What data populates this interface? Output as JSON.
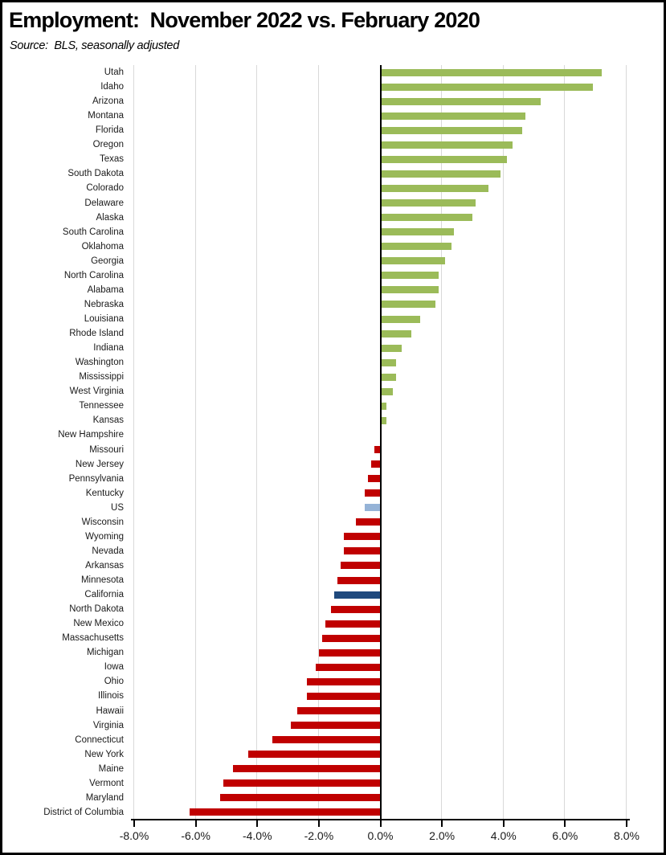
{
  "header": {
    "title": "Employment:  November 2022 vs. February 2020",
    "source": "Source:  BLS, seasonally adjusted"
  },
  "chart_data": {
    "type": "bar",
    "orientation": "horizontal",
    "title": "Employment:  November 2022 vs. February 2020",
    "subtitle": "Source:  BLS, seasonally adjusted",
    "value_unit": "percent_change",
    "xlim": [
      -8,
      8
    ],
    "x_tick_labels": [
      "-8.0%",
      "-6.0%",
      "-4.0%",
      "-2.0%",
      "0.0%",
      "2.0%",
      "4.0%",
      "6.0%",
      "8.0%"
    ],
    "grid": true,
    "legend": "none",
    "colors": {
      "positive": "#9BBB59",
      "negative": "#C00000",
      "us": "#95B3D7",
      "california": "#1F497D",
      "gridline": "#D9D9D9",
      "axis": "#000000"
    },
    "categories": [
      "Utah",
      "Idaho",
      "Arizona",
      "Montana",
      "Florida",
      "Oregon",
      "Texas",
      "South Dakota",
      "Colorado",
      "Delaware",
      "Alaska",
      "South Carolina",
      "Oklahoma",
      "Georgia",
      "North Carolina",
      "Alabama",
      "Nebraska",
      "Louisiana",
      "Rhode Island",
      "Indiana",
      "Washington",
      "Mississippi",
      "West Virginia",
      "Tennessee",
      "Kansas",
      "New Hampshire",
      "Missouri",
      "New Jersey",
      "Pennsylvania",
      "Kentucky",
      "US",
      "Wisconsin",
      "Wyoming",
      "Nevada",
      "Arkansas",
      "Minnesota",
      "California",
      "North Dakota",
      "New Mexico",
      "Massachusetts",
      "Michigan",
      "Iowa",
      "Ohio",
      "Illinois",
      "Hawaii",
      "Virginia",
      "Connecticut",
      "New York",
      "Maine",
      "Vermont",
      "Maryland",
      "District of Columbia"
    ],
    "values": [
      7.2,
      6.9,
      5.2,
      4.7,
      4.6,
      4.3,
      4.1,
      3.9,
      3.5,
      3.1,
      3.0,
      2.4,
      2.3,
      2.1,
      1.9,
      1.9,
      1.8,
      1.3,
      1.0,
      0.7,
      0.5,
      0.5,
      0.4,
      0.2,
      0.2,
      0.0,
      -0.2,
      -0.3,
      -0.4,
      -0.5,
      -0.5,
      -0.8,
      -1.2,
      -1.2,
      -1.3,
      -1.4,
      -1.5,
      -1.6,
      -1.8,
      -1.9,
      -2.0,
      -2.1,
      -2.4,
      -2.4,
      -2.7,
      -2.9,
      -3.5,
      -4.3,
      -4.8,
      -5.1,
      -5.2,
      -6.2
    ],
    "color_roles": [
      "positive",
      "positive",
      "positive",
      "positive",
      "positive",
      "positive",
      "positive",
      "positive",
      "positive",
      "positive",
      "positive",
      "positive",
      "positive",
      "positive",
      "positive",
      "positive",
      "positive",
      "positive",
      "positive",
      "positive",
      "positive",
      "positive",
      "positive",
      "positive",
      "positive",
      "positive",
      "negative",
      "negative",
      "negative",
      "negative",
      "us",
      "negative",
      "negative",
      "negative",
      "negative",
      "negative",
      "california",
      "negative",
      "negative",
      "negative",
      "negative",
      "negative",
      "negative",
      "negative",
      "negative",
      "negative",
      "negative",
      "negative",
      "negative",
      "negative",
      "negative",
      "negative"
    ]
  }
}
